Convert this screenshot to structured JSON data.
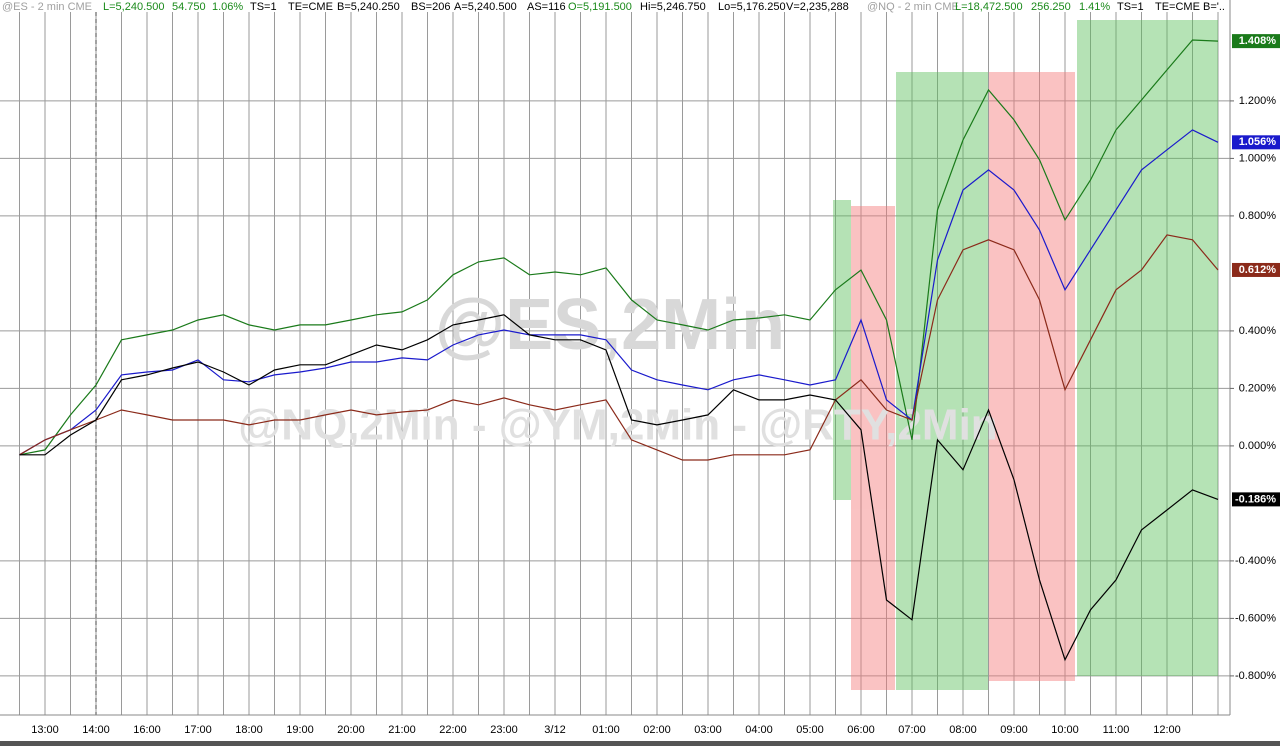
{
  "chart_data": {
    "type": "line",
    "headers": [
      [
        {
          "text": "@ES - 2 min  CME",
          "color": "#a0a0a0"
        },
        {
          "text": "L=5,240.500",
          "color": "#1a8a1a"
        },
        {
          "text": "54.750",
          "color": "#1a8a1a"
        },
        {
          "text": "1.06%",
          "color": "#1a8a1a"
        },
        {
          "text": "TS=1",
          "color": "#000000"
        },
        {
          "text": "TE=CME",
          "color": "#000000"
        },
        {
          "text": "B=5,240.250",
          "color": "#000000"
        },
        {
          "text": "BS=206",
          "color": "#000000"
        },
        {
          "text": "A=5,240.500",
          "color": "#000000"
        },
        {
          "text": "AS=116",
          "color": "#000000"
        },
        {
          "text": "O=5,191.500",
          "color": "#1a8a1a"
        },
        {
          "text": "Hi=5,246.750",
          "color": "#000000"
        },
        {
          "text": "Lo=5,176.250",
          "color": "#000000"
        },
        {
          "text": "V=2,235,288",
          "color": "#000000"
        }
      ],
      [
        {
          "text": "@NQ - 2 min  CME",
          "color": "#a0a0a0"
        },
        {
          "text": "L=18,472.500",
          "color": "#1a8a1a"
        },
        {
          "text": "256.250",
          "color": "#1a8a1a"
        },
        {
          "text": "1.41%",
          "color": "#1a8a1a"
        },
        {
          "text": "TS=1",
          "color": "#000000"
        },
        {
          "text": "TE=CME",
          "color": "#000000"
        },
        {
          "text": "B='..",
          "color": "#000000"
        }
      ]
    ],
    "watermarks": [
      "@ES,2Min",
      "@NQ,2Min - @YM,2Min - @RTY,2Min"
    ],
    "categories": [
      null,
      "13:00",
      null,
      "14:00",
      null,
      "16:00",
      null,
      "17:00",
      null,
      "18:00",
      null,
      "19:00",
      null,
      "20:00",
      null,
      "21:00",
      null,
      "22:00",
      null,
      "23:00",
      null,
      "3/12",
      null,
      "01:00",
      null,
      "02:00",
      null,
      "03:00",
      null,
      "04:00",
      null,
      "05:00",
      null,
      "06:00",
      null,
      "07:00",
      null,
      "08:00",
      null,
      "09:00",
      null,
      "10:00",
      null,
      "11:00",
      null,
      "12:00",
      null,
      null
    ],
    "ylim": [
      -0.936,
      1.551
    ],
    "yticks": [
      {
        "value": 1.2,
        "label": "1.200%"
      },
      {
        "value": 1.0,
        "label": "1.000%"
      },
      {
        "value": 0.8,
        "label": "0.800%"
      },
      {
        "value": 0.4,
        "label": "0.400%"
      },
      {
        "value": 0.2,
        "label": "0.200%"
      },
      {
        "value": 0.0,
        "label": "0.000%"
      },
      {
        "value": -0.4,
        "label": "-0.400%"
      },
      {
        "value": -0.6,
        "label": "-0.600%"
      },
      {
        "value": -0.8,
        "label": "-0.800%"
      }
    ],
    "grid": true,
    "series": [
      {
        "color": "#1a7a1a",
        "last_label": "1.408%",
        "values": [
          -0.031,
          -0.014,
          0.108,
          0.212,
          0.369,
          0.386,
          0.403,
          0.438,
          0.456,
          0.421,
          0.403,
          0.421,
          0.421,
          0.438,
          0.456,
          0.466,
          0.508,
          0.595,
          0.64,
          0.654,
          0.595,
          0.605,
          0.595,
          0.619,
          0.508,
          0.438,
          0.421,
          0.403,
          0.438,
          0.445,
          0.456,
          0.438,
          0.543,
          0.612,
          0.438,
          0.021,
          0.821,
          1.064,
          1.238,
          1.134,
          0.995,
          0.786,
          0.925,
          1.099,
          1.203,
          1.308,
          1.412,
          1.408
        ]
      },
      {
        "color": "#1a1acc",
        "last_label": "1.056%",
        "values": [
          -0.031,
          0.021,
          0.056,
          0.125,
          0.247,
          0.257,
          0.264,
          0.299,
          0.23,
          0.223,
          0.247,
          0.257,
          0.271,
          0.292,
          0.292,
          0.306,
          0.299,
          0.351,
          0.386,
          0.403,
          0.386,
          0.386,
          0.386,
          0.369,
          0.264,
          0.23,
          0.212,
          0.195,
          0.23,
          0.247,
          0.23,
          0.212,
          0.23,
          0.438,
          0.16,
          0.09,
          0.647,
          0.89,
          0.96,
          0.89,
          0.751,
          0.543,
          0.682,
          0.821,
          0.96,
          1.03,
          1.099,
          1.056
        ]
      },
      {
        "color": "#8b2a1a",
        "last_label": "0.612%",
        "values": [
          -0.031,
          0.021,
          0.056,
          0.09,
          0.125,
          0.108,
          0.09,
          0.09,
          0.09,
          0.073,
          0.09,
          0.09,
          0.108,
          0.125,
          0.108,
          0.118,
          0.125,
          0.16,
          0.143,
          0.167,
          0.143,
          0.125,
          0.143,
          0.16,
          0.021,
          -0.014,
          -0.049,
          -0.049,
          -0.031,
          -0.031,
          -0.031,
          -0.014,
          0.16,
          0.23,
          0.125,
          0.09,
          0.508,
          0.682,
          0.717,
          0.682,
          0.508,
          0.195,
          0.369,
          0.543,
          0.612,
          0.734,
          0.717,
          0.612
        ]
      },
      {
        "color": "#000000",
        "last_label": "-0.186%",
        "values": [
          -0.031,
          -0.031,
          0.038,
          0.09,
          0.23,
          0.247,
          0.271,
          0.292,
          0.257,
          0.212,
          0.264,
          0.282,
          0.282,
          0.317,
          0.351,
          0.334,
          0.369,
          0.421,
          0.438,
          0.456,
          0.386,
          0.369,
          0.369,
          0.334,
          0.09,
          0.073,
          0.09,
          0.108,
          0.195,
          0.16,
          0.16,
          0.177,
          0.16,
          0.056,
          -0.536,
          -0.605,
          0.021,
          -0.083,
          0.125,
          -0.118,
          -0.466,
          -0.744,
          -0.57,
          -0.466,
          -0.292,
          -0.223,
          -0.153,
          -0.186
        ]
      }
    ]
  }
}
